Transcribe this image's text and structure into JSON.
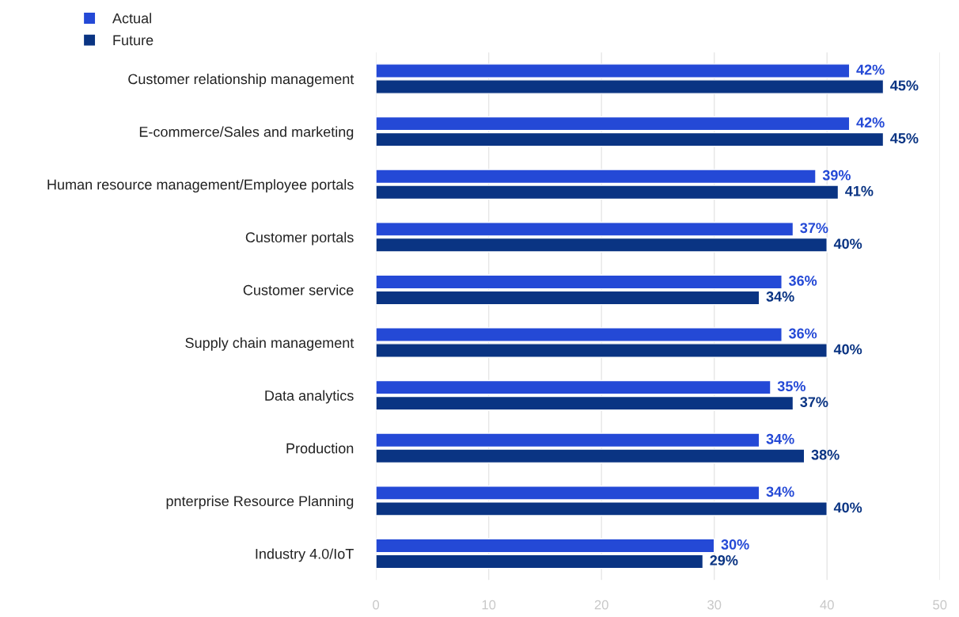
{
  "chart_data": {
    "type": "bar",
    "orientation": "horizontal",
    "categories": [
      "Customer relationship management",
      "E-commerce/Sales and marketing",
      "Human resource management/Employee portals",
      "Customer portals",
      "Customer service",
      "Supply chain management",
      "Data analytics",
      "Production",
      "pnterprise Resource Planning",
      "Industry 4.0/IoT"
    ],
    "series": [
      {
        "name": "Actual",
        "color": "#2449d6",
        "values": [
          42,
          42,
          39,
          37,
          36,
          36,
          35,
          34,
          34,
          30
        ],
        "value_labels": [
          "42%",
          "42%",
          "39%",
          "37%",
          "36%",
          "36%",
          "35%",
          "34%",
          "34%",
          "30%"
        ]
      },
      {
        "name": "Future",
        "color": "#0a3483",
        "values": [
          45,
          45,
          41,
          40,
          34,
          40,
          37,
          38,
          40,
          29
        ],
        "value_labels": [
          "45%",
          "45%",
          "41%",
          "40%",
          "34%",
          "40%",
          "37%",
          "38%",
          "40%",
          "29%"
        ]
      }
    ],
    "xlim": [
      0,
      50
    ],
    "xticks": [
      0,
      10,
      20,
      30,
      40,
      50
    ],
    "grid": "x",
    "legend": "top left"
  }
}
